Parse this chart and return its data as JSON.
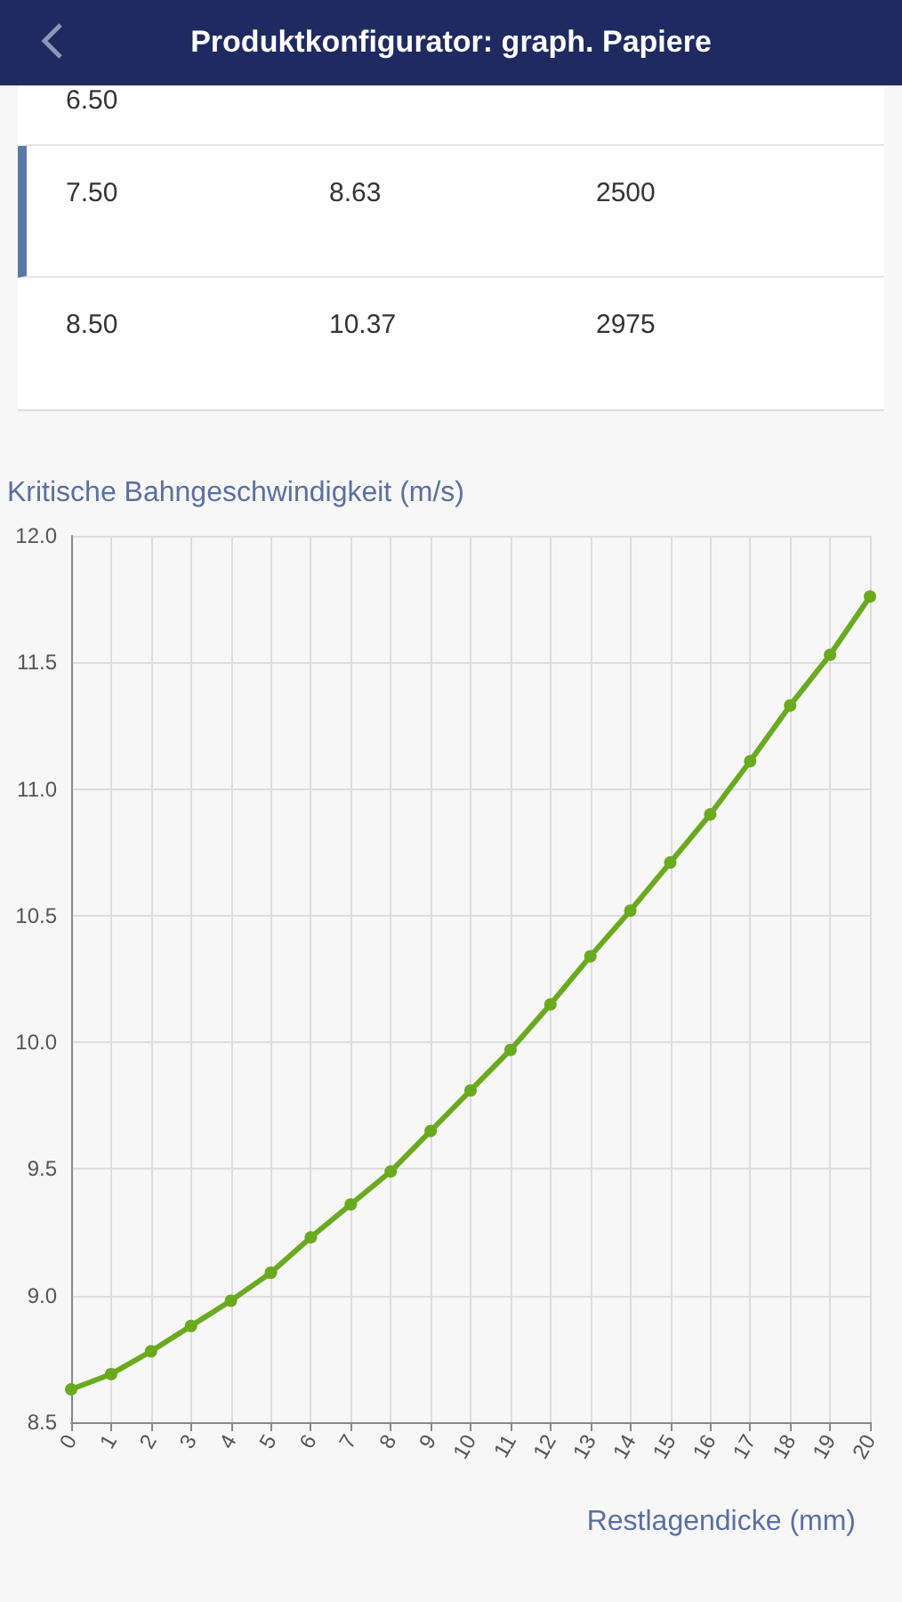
{
  "chart_data": [
    {
      "type": "other",
      "title": "Produktkonfigurator: graph. Papiere",
      "annotations": [
        "6.50",
        "7.50",
        "8.63",
        "2500",
        "8.50",
        "10.37",
        "2975"
      ]
    },
    {
      "type": "line",
      "ylabel": "Kritische Bahngeschwindigkeit (m/s)",
      "xlabel": "Restlagendicke (mm)",
      "x": [
        0,
        1,
        2,
        3,
        4,
        5,
        6,
        7,
        8,
        9,
        10,
        11,
        12,
        13,
        14,
        15,
        16,
        17,
        18,
        19,
        20
      ],
      "series": [
        {
          "color": "#6aaa1e",
          "values": [
            8.63,
            8.69,
            8.78,
            8.88,
            8.98,
            9.09,
            9.23,
            9.36,
            9.49,
            9.65,
            9.81,
            9.97,
            10.15,
            10.34,
            10.52,
            10.71,
            10.9,
            11.11,
            11.33,
            11.53,
            11.76
          ]
        }
      ],
      "xlim": [
        0,
        20
      ],
      "xticks": [
        0,
        1,
        2,
        3,
        4,
        5,
        6,
        7,
        8,
        9,
        10,
        11,
        12,
        13,
        14,
        15,
        16,
        17,
        18,
        19,
        20
      ],
      "ylim": [
        8.5,
        12
      ],
      "yticks": [
        {
          "value": 8.5,
          "label": "8.5"
        },
        {
          "value": 9,
          "label": "9.0"
        },
        {
          "value": 9.5,
          "label": "9.5"
        },
        {
          "value": 10,
          "label": "10.0"
        },
        {
          "value": 10.5,
          "label": "10.5"
        },
        {
          "value": 11,
          "label": "11.0"
        },
        {
          "value": 11.5,
          "label": "11.5"
        },
        {
          "value": 12,
          "label": "12.0"
        }
      ],
      "grid": true,
      "marker": "circle",
      "line_style": "solid"
    }
  ]
}
